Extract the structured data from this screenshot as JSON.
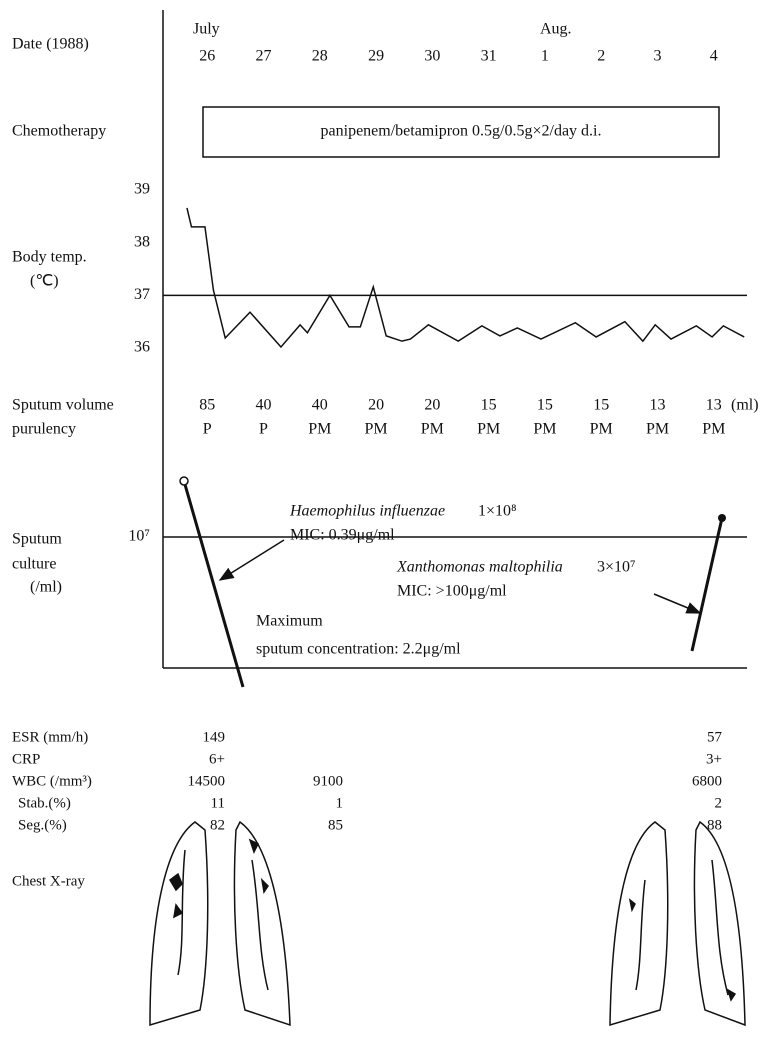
{
  "header": {
    "date_label": "Date (1988)",
    "months": [
      "July",
      "Aug."
    ],
    "days": [
      "26",
      "27",
      "28",
      "29",
      "30",
      "31",
      "1",
      "2",
      "3",
      "4"
    ]
  },
  "chemotherapy": {
    "label": "Chemotherapy",
    "regimen": "panipenem/betamipron 0.5g/0.5g×2/day d.i."
  },
  "body_temp": {
    "label": "Body temp.",
    "unit": "(℃)",
    "x": [
      -0.36,
      -0.28,
      -0.04,
      0.11,
      0.32,
      0.76,
      1.31,
      1.65,
      1.78,
      2.18,
      2.52,
      2.72,
      2.95,
      3.18,
      3.46,
      3.61,
      3.93,
      4.46,
      4.88,
      5.2,
      5.51,
      5.93,
      6.54,
      6.91,
      7.42,
      7.74,
      7.96,
      8.24,
      8.69,
      8.97,
      9.17,
      9.54
    ],
    "values": [
      38.66,
      38.3,
      38.3,
      37.1,
      36.19,
      36.68,
      36.02,
      36.44,
      36.29,
      37.0,
      36.4,
      36.4,
      37.16,
      36.23,
      36.13,
      36.17,
      36.44,
      36.13,
      36.42,
      36.23,
      36.38,
      36.17,
      36.48,
      36.21,
      36.5,
      36.13,
      36.44,
      36.17,
      36.42,
      36.21,
      36.42,
      36.21
    ],
    "xlim": [
      -0.75,
      9.75
    ],
    "ylim": [
      36,
      39
    ],
    "yticks": [
      36,
      37,
      38,
      39
    ],
    "reference_line": 37
  },
  "sputum": {
    "volume_label": "Sputum volume",
    "purulency_label": "purulency",
    "unit": "(ml)",
    "volumes": [
      85,
      40,
      40,
      20,
      20,
      15,
      15,
      15,
      13,
      13
    ],
    "purulency": [
      "P",
      "P",
      "PM",
      "PM",
      "PM",
      "PM",
      "PM",
      "PM",
      "PM",
      "PM"
    ]
  },
  "culture": {
    "label": [
      "Sputum",
      "culture",
      "(/ml)"
    ],
    "tick": "10⁷",
    "organism_1": {
      "name": "Haemophilus influenzae",
      "count": "1×10⁸",
      "mic": "MIC: 0.39μg/ml"
    },
    "note": [
      "Maximum",
      "sputum concentration: 2.2μg/ml"
    ],
    "organism_2": {
      "name": "Xanthomonas maltophilia",
      "count": "3×10⁷",
      "mic": "MIC: >100μg/ml"
    }
  },
  "labs": {
    "rows": [
      {
        "label": "ESR (mm/h)",
        "values": [
          149,
          null,
          57
        ]
      },
      {
        "label": "CRP",
        "values": [
          "6+",
          null,
          "3+"
        ]
      },
      {
        "label": "WBC (/mm³)",
        "values": [
          14500,
          9100,
          6800
        ]
      },
      {
        "label": "Stab.(%)",
        "values": [
          11,
          1,
          2
        ]
      },
      {
        "label": "Seg.(%)",
        "values": [
          82,
          85,
          88
        ]
      }
    ]
  },
  "chest_xray": {
    "label": "Chest X-ray"
  }
}
